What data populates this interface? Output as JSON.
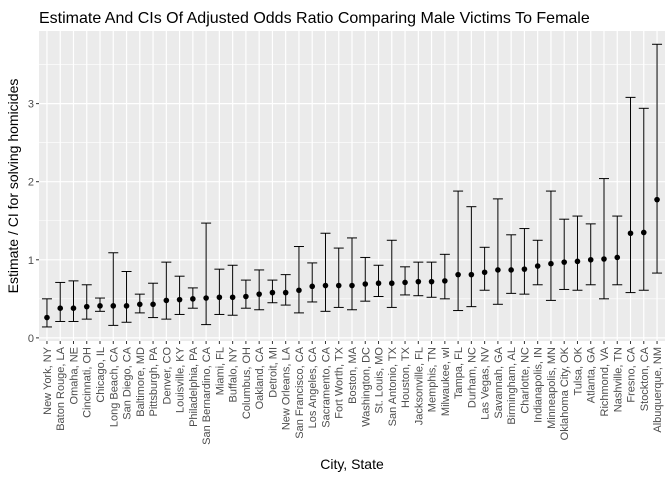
{
  "chart_data": {
    "type": "scatter",
    "title": "Estimate And CIs Of Adjusted Odds Ratio Comparing Male Victims To Female",
    "xlabel": "City, State",
    "ylabel": "Estimate / CI for solving homicides",
    "ylim": [
      -0.04,
      3.93
    ],
    "yticks": [
      0,
      1,
      2,
      3
    ],
    "grid": true,
    "legend": "none",
    "colors": {
      "panel": "#ebebeb",
      "grid": "#ffffff",
      "point": "#000000",
      "errorbar": "#000000",
      "tick_label": "#4d4d4d",
      "tick": "#333333"
    },
    "categories": [
      "New York, NY",
      "Baton Rouge, LA",
      "Omaha, NE",
      "Cincinnati, OH",
      "Chicago, IL",
      "Long Beach, CA",
      "San Diego, CA",
      "Baltimore, MD",
      "Pittsburgh, PA",
      "Denver, CO",
      "Louisville, KY",
      "Philadelphia, PA",
      "San Bernardino, CA",
      "Miami, FL",
      "Buffalo, NY",
      "Columbus, OH",
      "Oakland, CA",
      "Detroit, MI",
      "New Orleans, LA",
      "San Francisco, CA",
      "Los Angeles, CA",
      "Sacramento, CA",
      "Fort Worth, TX",
      "Boston, MA",
      "Washington, DC",
      "St. Louis, MO",
      "San Antonio, TX",
      "Houston, TX",
      "Jacksonville, FL",
      "Memphis, TN",
      "Milwaukee, wI",
      "Tampa, FL",
      "Durham, NC",
      "Las Vegas, NV",
      "Savannah, GA",
      "Birmingham, AL",
      "Charlotte, NC",
      "Indianapolis, IN",
      "Minneapolis, MN",
      "Oklahoma City, OK",
      "Tulsa, OK",
      "Atlanta, GA",
      "Richmond, VA",
      "Nashville, TN",
      "Fresno, CA",
      "Stockton, CA",
      "Albuquerque, NM"
    ],
    "estimate": [
      0.26,
      0.38,
      0.38,
      0.4,
      0.41,
      0.41,
      0.41,
      0.43,
      0.43,
      0.48,
      0.49,
      0.5,
      0.51,
      0.52,
      0.52,
      0.53,
      0.56,
      0.58,
      0.58,
      0.61,
      0.66,
      0.67,
      0.67,
      0.67,
      0.69,
      0.7,
      0.7,
      0.71,
      0.72,
      0.72,
      0.73,
      0.81,
      0.81,
      0.84,
      0.87,
      0.87,
      0.88,
      0.92,
      0.95,
      0.97,
      0.98,
      1.0,
      1.01,
      1.03,
      1.34,
      1.35,
      1.77
    ],
    "ci_low": [
      0.14,
      0.21,
      0.21,
      0.24,
      0.34,
      0.16,
      0.2,
      0.32,
      0.26,
      0.24,
      0.3,
      0.38,
      0.17,
      0.3,
      0.29,
      0.38,
      0.36,
      0.45,
      0.42,
      0.32,
      0.46,
      0.34,
      0.39,
      0.36,
      0.47,
      0.53,
      0.39,
      0.55,
      0.54,
      0.52,
      0.5,
      0.35,
      0.4,
      0.61,
      0.43,
      0.57,
      0.56,
      0.68,
      0.48,
      0.62,
      0.61,
      0.68,
      0.5,
      0.68,
      0.58,
      0.61,
      0.83
    ],
    "ci_high": [
      0.5,
      0.71,
      0.73,
      0.68,
      0.51,
      1.09,
      0.85,
      0.56,
      0.7,
      0.97,
      0.79,
      0.64,
      1.47,
      0.88,
      0.93,
      0.74,
      0.87,
      0.74,
      0.81,
      1.17,
      0.96,
      1.34,
      1.15,
      1.28,
      1.03,
      0.93,
      1.25,
      0.91,
      0.97,
      0.97,
      1.07,
      1.88,
      1.68,
      1.16,
      1.78,
      1.32,
      1.4,
      1.25,
      1.88,
      1.52,
      1.56,
      1.46,
      2.04,
      1.56,
      3.08,
      2.94,
      3.76
    ]
  }
}
